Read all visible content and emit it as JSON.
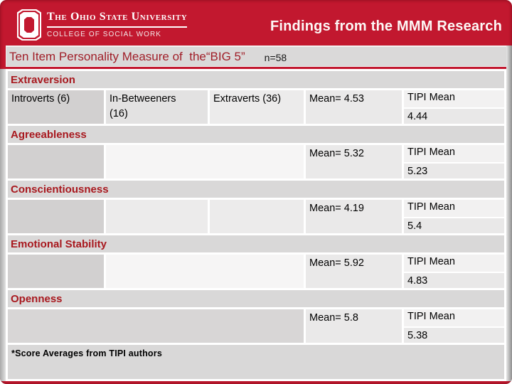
{
  "slide": {
    "logo": {
      "block_o": "block-o",
      "org_name": "The Ohio State University",
      "college_name": "COLLEGE OF SOCIAL WORK"
    },
    "header_title": "Findings from the MMM Research",
    "table_title": "Ten Item Personality Measure of  the“BIG 5”",
    "sample_size": "n=58",
    "footnote": "*Score Averages from TIPI authors"
  },
  "colors": {
    "slide_red": "#C2182F",
    "title_text_red": "#A01E28",
    "trait_header_red": "#A8181E",
    "box_gray": "#D9D8D8",
    "cell_dark_gray": "#D2D0D0",
    "cell_light_gray": "#ECEBEB",
    "cell_white_gray": "#F6F5F5",
    "text_white": "#FDF8F6",
    "text_black": "#000000"
  },
  "table": {
    "rows": [
      {
        "trait": "Extraversion",
        "cells": [
          "Introverts (6)",
          "In-Betweeners (16)",
          "Extraverts (36)"
        ],
        "mean": "Mean= 4.53",
        "tipi_label": "TIPI Mean",
        "tipi_value": "4.44"
      },
      {
        "trait": "Agreeableness",
        "cells": [],
        "mean": "Mean= 5.32",
        "tipi_label": "TIPI Mean",
        "tipi_value": "5.23"
      },
      {
        "trait": "Conscientiousness",
        "cells": [],
        "mean": "Mean= 4.19",
        "tipi_label": "TIPI Mean",
        "tipi_value": "5.4"
      },
      {
        "trait": "Emotional Stability",
        "cells": [],
        "mean": "Mean= 5.92",
        "tipi_label": "TIPI Mean",
        "tipi_value": "4.83"
      },
      {
        "trait": "Openness",
        "cells": [],
        "mean": "Mean= 5.8",
        "tipi_label": "TIPI Mean",
        "tipi_value": "5.38"
      }
    ]
  }
}
